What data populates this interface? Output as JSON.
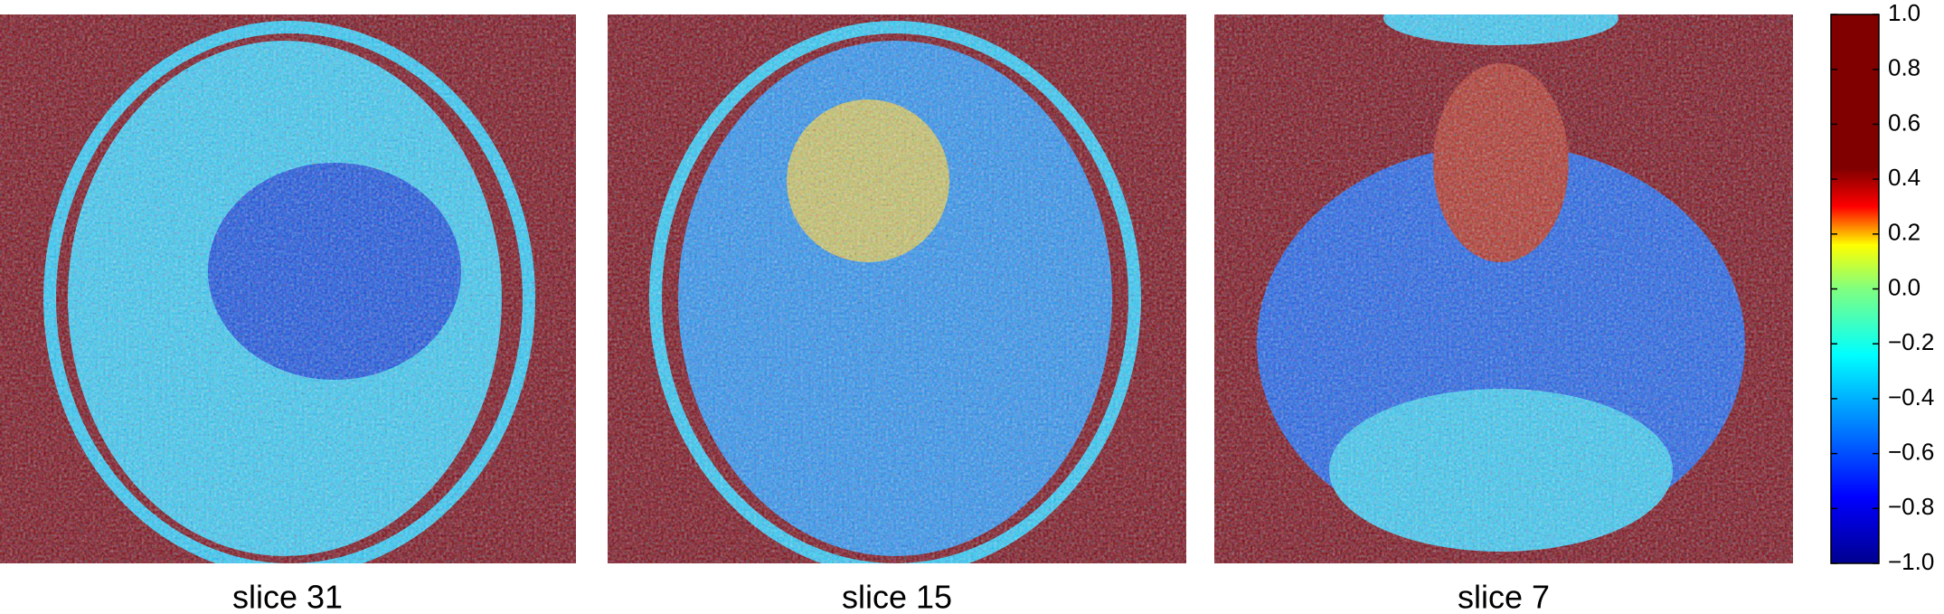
{
  "panels": [
    {
      "label": "slice 31"
    },
    {
      "label": "slice 15"
    },
    {
      "label": "slice 7"
    }
  ],
  "colorbar": {
    "lim": [
      -1,
      1
    ],
    "ticks": [
      {
        "value": 1,
        "label": "1.0"
      },
      0.8,
      0.6,
      0.4,
      0.2,
      {
        "value": 0,
        "label": "0.0"
      },
      {
        "value": -0.2,
        "label": "−0.2"
      },
      {
        "value": -0.4,
        "label": "−0.4"
      },
      {
        "value": -0.6,
        "label": "−0.6"
      },
      {
        "value": -0.8,
        "label": "−0.8"
      },
      {
        "value": -1,
        "label": "−1.0"
      }
    ]
  }
}
